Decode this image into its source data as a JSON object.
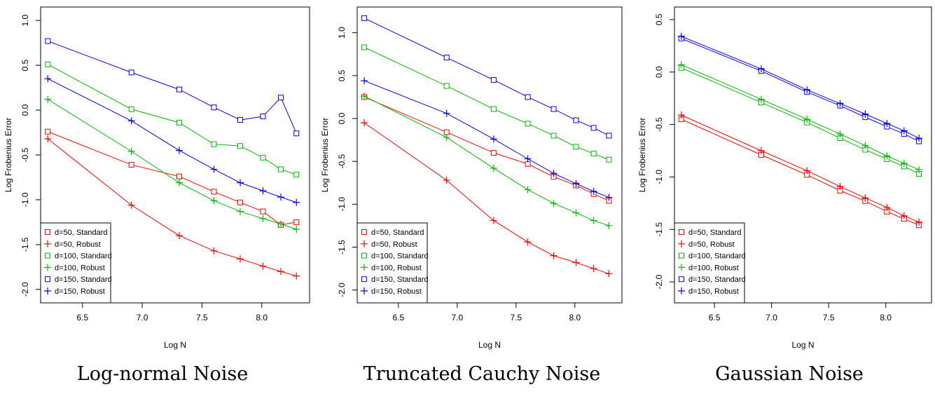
{
  "chart_data": [
    {
      "type": "line",
      "caption": "Log-normal Noise",
      "xlabel": "Log N",
      "ylabel": "Log Frobenius Error",
      "xlim": [
        6.15,
        8.4
      ],
      "ylim": [
        -2.15,
        1.15
      ],
      "xticks": [
        "6.5",
        "7.0",
        "7.5",
        "8.0"
      ],
      "yticks": [
        "-2.0",
        "-1.5",
        "-1.0",
        "-0.5",
        "0.0",
        "0.5",
        "1.0"
      ],
      "legend_position": "bottom-left",
      "x": [
        6.21,
        6.91,
        7.31,
        7.6,
        7.82,
        8.01,
        8.16,
        8.29
      ],
      "series": [
        {
          "name": "d=50, Standard",
          "color": "#ff0000",
          "marker": "square",
          "values": [
            -0.24,
            -0.61,
            -0.74,
            -0.91,
            -1.03,
            -1.13,
            -1.28,
            -1.25
          ]
        },
        {
          "name": "d=50, Robust",
          "color": "#ff0000",
          "marker": "plus",
          "values": [
            -0.32,
            -1.06,
            -1.4,
            -1.57,
            -1.66,
            -1.74,
            -1.8,
            -1.85
          ]
        },
        {
          "name": "d=100, Standard",
          "color": "#00bb00",
          "marker": "square",
          "values": [
            0.51,
            0.01,
            -0.14,
            -0.38,
            -0.4,
            -0.53,
            -0.66,
            -0.72
          ]
        },
        {
          "name": "d=100, Robust",
          "color": "#00bb00",
          "marker": "plus",
          "values": [
            0.12,
            -0.46,
            -0.81,
            -1.01,
            -1.13,
            -1.21,
            -1.27,
            -1.33
          ]
        },
        {
          "name": "d=150, Standard",
          "color": "#0000ff",
          "marker": "square",
          "values": [
            0.77,
            0.42,
            0.23,
            0.03,
            -0.11,
            -0.07,
            0.14,
            -0.26
          ]
        },
        {
          "name": "d=150, Robust",
          "color": "#0000ff",
          "marker": "plus",
          "values": [
            0.35,
            -0.12,
            -0.45,
            -0.66,
            -0.81,
            -0.9,
            -0.97,
            -1.03
          ]
        }
      ]
    },
    {
      "type": "line",
      "caption": "Truncated Cauchy Noise",
      "xlabel": "Log N",
      "ylabel": "Log Frobenius Error",
      "xlim": [
        6.15,
        8.4
      ],
      "ylim": [
        -2.15,
        1.3
      ],
      "xticks": [
        "6.5",
        "7.0",
        "7.5",
        "8.0"
      ],
      "yticks": [
        "-2.0",
        "-1.5",
        "-1.0",
        "-0.5",
        "0.0",
        "0.5",
        "1.0"
      ],
      "legend_position": "bottom-left",
      "x": [
        6.21,
        6.91,
        7.31,
        7.6,
        7.82,
        8.01,
        8.16,
        8.29
      ],
      "series": [
        {
          "name": "d=50, Standard",
          "color": "#ff0000",
          "marker": "square",
          "values": [
            0.25,
            -0.16,
            -0.4,
            -0.53,
            -0.68,
            -0.78,
            -0.88,
            -0.96
          ]
        },
        {
          "name": "d=50, Robust",
          "color": "#ff0000",
          "marker": "plus",
          "values": [
            -0.05,
            -0.72,
            -1.19,
            -1.44,
            -1.6,
            -1.68,
            -1.75,
            -1.81
          ]
        },
        {
          "name": "d=100, Standard",
          "color": "#00bb00",
          "marker": "square",
          "values": [
            0.83,
            0.38,
            0.11,
            -0.06,
            -0.2,
            -0.33,
            -0.41,
            -0.48
          ]
        },
        {
          "name": "d=100, Robust",
          "color": "#00bb00",
          "marker": "plus",
          "values": [
            0.26,
            -0.22,
            -0.58,
            -0.83,
            -0.99,
            -1.1,
            -1.19,
            -1.25
          ]
        },
        {
          "name": "d=150, Standard",
          "color": "#0000ff",
          "marker": "square",
          "values": [
            1.17,
            0.71,
            0.45,
            0.25,
            0.11,
            -0.02,
            -0.11,
            -0.2
          ]
        },
        {
          "name": "d=150, Robust",
          "color": "#0000ff",
          "marker": "plus",
          "values": [
            0.44,
            0.06,
            -0.24,
            -0.47,
            -0.64,
            -0.76,
            -0.85,
            -0.92
          ]
        }
      ]
    },
    {
      "type": "line",
      "caption": "Gaussian Noise",
      "xlabel": "Log N",
      "ylabel": "Log Frobenius Error",
      "xlim": [
        6.15,
        8.4
      ],
      "ylim": [
        -2.2,
        0.62
      ],
      "xticks": [
        "6.5",
        "7.0",
        "7.5",
        "8.0"
      ],
      "yticks": [
        "-2.0",
        "-1.5",
        "-1.0",
        "-0.5",
        "0.0",
        "0.5"
      ],
      "legend_position": "bottom-left",
      "x": [
        6.21,
        6.91,
        7.31,
        7.6,
        7.82,
        8.01,
        8.16,
        8.29
      ],
      "series": [
        {
          "name": "d=50, Standard",
          "color": "#ff0000",
          "marker": "square",
          "values": [
            -0.45,
            -0.79,
            -0.98,
            -1.13,
            -1.23,
            -1.33,
            -1.4,
            -1.46
          ]
        },
        {
          "name": "d=50, Robust",
          "color": "#ff0000",
          "marker": "plus",
          "values": [
            -0.41,
            -0.75,
            -0.94,
            -1.09,
            -1.2,
            -1.29,
            -1.37,
            -1.43
          ]
        },
        {
          "name": "d=100, Standard",
          "color": "#00bb00",
          "marker": "square",
          "values": [
            0.04,
            -0.29,
            -0.48,
            -0.63,
            -0.74,
            -0.83,
            -0.9,
            -0.97
          ]
        },
        {
          "name": "d=100, Robust",
          "color": "#00bb00",
          "marker": "plus",
          "values": [
            0.07,
            -0.26,
            -0.45,
            -0.59,
            -0.7,
            -0.8,
            -0.87,
            -0.93
          ]
        },
        {
          "name": "d=150, Standard",
          "color": "#0000ff",
          "marker": "square",
          "values": [
            0.32,
            0.01,
            -0.19,
            -0.32,
            -0.43,
            -0.52,
            -0.59,
            -0.66
          ]
        },
        {
          "name": "d=150, Robust",
          "color": "#0000ff",
          "marker": "plus",
          "values": [
            0.34,
            0.03,
            -0.17,
            -0.3,
            -0.4,
            -0.49,
            -0.56,
            -0.63
          ]
        }
      ]
    }
  ]
}
